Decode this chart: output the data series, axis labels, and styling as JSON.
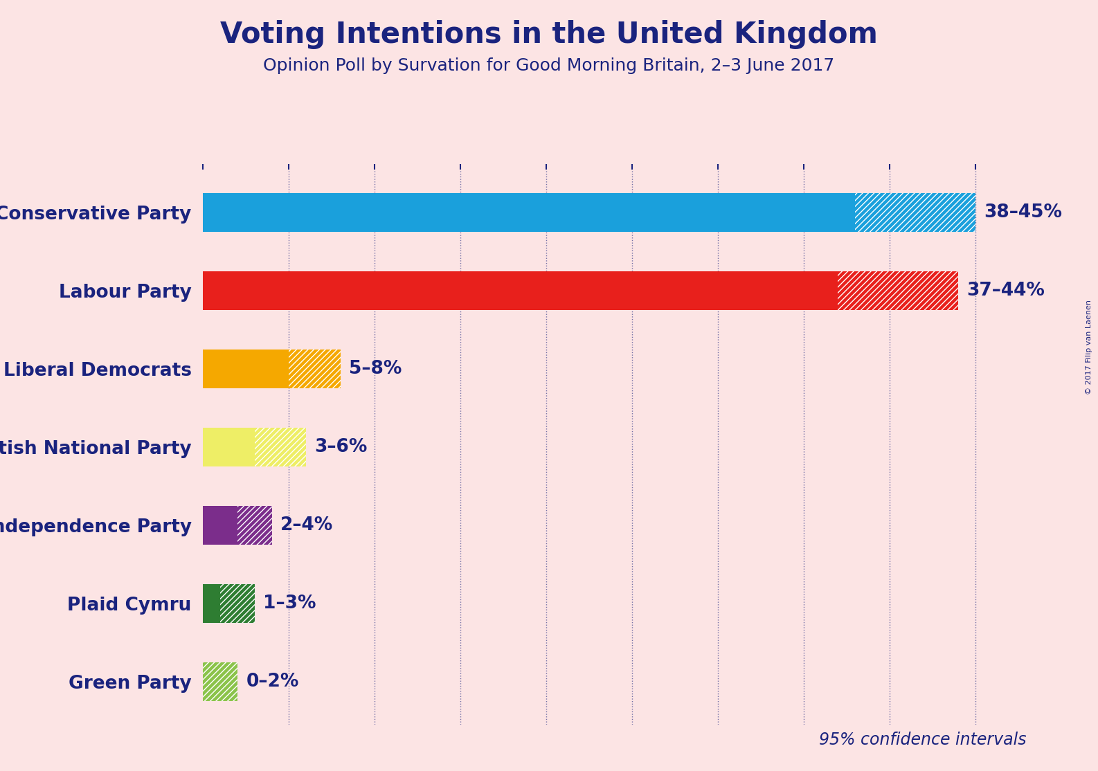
{
  "title": "Voting Intentions in the United Kingdom",
  "subtitle": "Opinion Poll by Survation for Good Morning Britain, 2–3 June 2017",
  "copyright_text": "© 2017 Filip van Laenen",
  "background_color": "#fce4e4",
  "title_color": "#1a237e",
  "subtitle_color": "#1a237e",
  "bar_label_color": "#1a237e",
  "annotation_color": "#1a237e",
  "parties": [
    "Conservative Party",
    "Labour Party",
    "Liberal Democrats",
    "Scottish National Party",
    "UK Independence Party",
    "Plaid Cymru",
    "Green Party"
  ],
  "low_values": [
    38,
    37,
    5,
    3,
    2,
    1,
    0
  ],
  "high_values": [
    45,
    44,
    8,
    6,
    4,
    3,
    2
  ],
  "labels": [
    "38–45%",
    "37–44%",
    "5–8%",
    "3–6%",
    "2–4%",
    "1–3%",
    "0–2%"
  ],
  "colors": [
    "#1aa0dc",
    "#e8201c",
    "#f5a800",
    "#eeee66",
    "#7b2d8b",
    "#2e7d32",
    "#8bc34a"
  ],
  "xlim": [
    0,
    48
  ],
  "tick_positions": [
    0,
    5,
    10,
    15,
    20,
    25,
    30,
    35,
    40,
    45
  ],
  "confidence_label": "95% confidence intervals",
  "bar_height": 0.5
}
